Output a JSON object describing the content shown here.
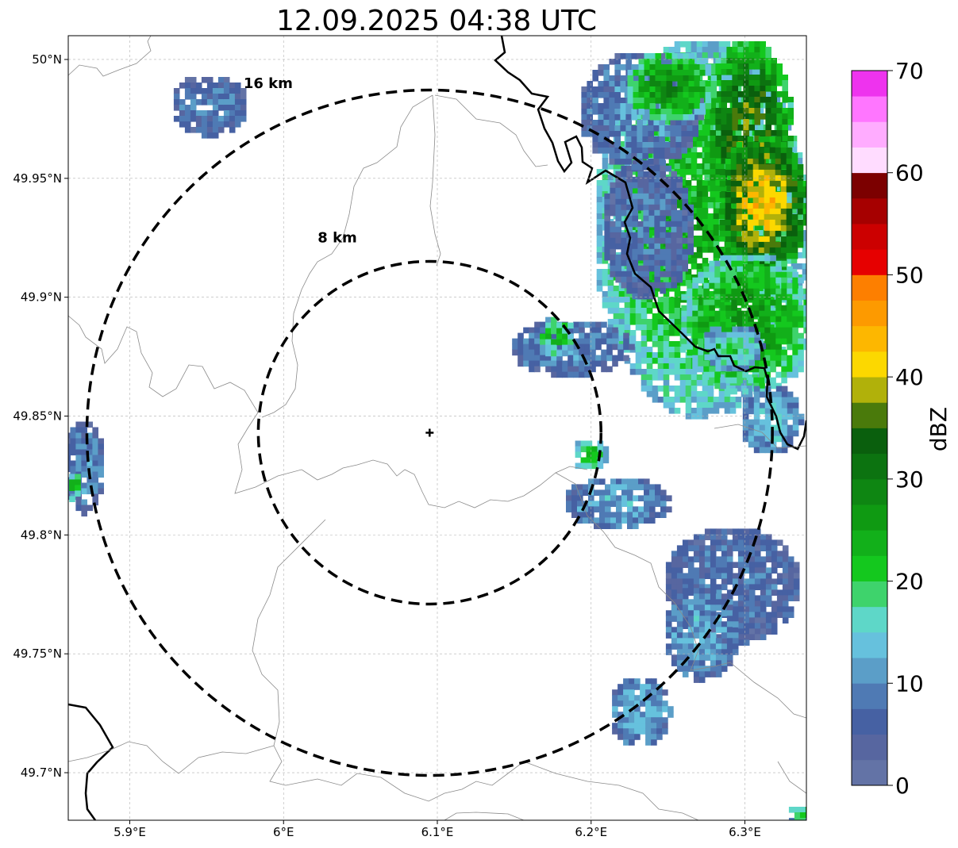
{
  "title": "12.09.2025 04:38 UTC",
  "map": {
    "lon_range": [
      5.86,
      6.34
    ],
    "lat_range": [
      49.68,
      50.01
    ],
    "radar_site": {
      "lon": 6.095,
      "lat": 49.843,
      "marker": "plus"
    },
    "grid": true,
    "x_ticks": [
      {
        "value": 5.9,
        "label": "5.9°E"
      },
      {
        "value": 6.0,
        "label": "6°E"
      },
      {
        "value": 6.1,
        "label": "6.1°E"
      },
      {
        "value": 6.2,
        "label": "6.2°E"
      },
      {
        "value": 6.3,
        "label": "6.3°E"
      }
    ],
    "y_ticks": [
      {
        "value": 49.7,
        "label": "49.7°N"
      },
      {
        "value": 49.75,
        "label": "49.75°N"
      },
      {
        "value": 49.8,
        "label": "49.8°N"
      },
      {
        "value": 49.85,
        "label": "49.85°N"
      },
      {
        "value": 49.9,
        "label": "49.9°N"
      },
      {
        "value": 49.95,
        "label": "49.95°N"
      },
      {
        "value": 50.0,
        "label": "50°N"
      }
    ],
    "range_rings": [
      {
        "radius_km": 8,
        "label": "8 km",
        "label_lon": 6.035,
        "label_lat": 49.923
      },
      {
        "radius_km": 16,
        "label": "16 km",
        "label_lon": 5.99,
        "label_lat": 49.988
      }
    ]
  },
  "colorbar": {
    "label": "dBZ",
    "min": 0,
    "max": 70,
    "step": 2.5,
    "tick_values": [
      0,
      10,
      20,
      30,
      40,
      50,
      60,
      70
    ],
    "tick_labels": [
      "0",
      "10",
      "20",
      "30",
      "40",
      "50",
      "60",
      "70"
    ],
    "colors": [
      "#6373a6",
      "#5766a0",
      "#4661a3",
      "#4f7ab4",
      "#5b9ec8",
      "#66c1dd",
      "#5ed7c8",
      "#3ed36c",
      "#14c81e",
      "#12b01a",
      "#0f9a12",
      "#0e8612",
      "#0c7310",
      "#0a5f0d",
      "#4a7a0b",
      "#b1b10a",
      "#fcd800",
      "#fdb700",
      "#fd9a00",
      "#fd7f00",
      "#e60000",
      "#cc0000",
      "#a60000",
      "#7c0000",
      "#ffdcff",
      "#ffacff",
      "#ff76ff",
      "#ee33ee"
    ]
  },
  "echoes": [
    {
      "lon": 6.27,
      "lat": 49.93,
      "rlon": 0.07,
      "rlat": 0.08,
      "dbz": 24
    },
    {
      "lon": 6.3,
      "lat": 49.97,
      "rlon": 0.03,
      "rlat": 0.04,
      "dbz": 36
    },
    {
      "lon": 6.31,
      "lat": 49.94,
      "rlon": 0.03,
      "rlat": 0.03,
      "dbz": 43
    },
    {
      "lon": 6.3,
      "lat": 49.89,
      "rlon": 0.045,
      "rlat": 0.03,
      "dbz": 27
    },
    {
      "lon": 6.235,
      "lat": 49.93,
      "rlon": 0.03,
      "rlat": 0.03,
      "dbz": 8
    },
    {
      "lon": 6.23,
      "lat": 49.98,
      "rlon": 0.04,
      "rlat": 0.025,
      "dbz": 10
    },
    {
      "lon": 6.25,
      "lat": 49.99,
      "rlon": 0.03,
      "rlat": 0.015,
      "dbz": 28
    },
    {
      "lon": 6.29,
      "lat": 49.88,
      "rlon": 0.02,
      "rlat": 0.01,
      "dbz": 18
    },
    {
      "lon": 6.315,
      "lat": 49.85,
      "rlon": 0.02,
      "rlat": 0.015,
      "dbz": 14
    },
    {
      "lon": 6.185,
      "lat": 49.88,
      "rlon": 0.04,
      "rlat": 0.012,
      "dbz": 10
    },
    {
      "lon": 6.175,
      "lat": 49.885,
      "rlon": 0.012,
      "rlat": 0.009,
      "dbz": 22
    },
    {
      "lon": 6.215,
      "lat": 49.815,
      "rlon": 0.035,
      "rlat": 0.011,
      "dbz": 12
    },
    {
      "lon": 6.198,
      "lat": 49.835,
      "rlon": 0.012,
      "rlat": 0.007,
      "dbz": 22
    },
    {
      "lon": 6.29,
      "lat": 49.78,
      "rlon": 0.045,
      "rlat": 0.025,
      "dbz": 8
    },
    {
      "lon": 6.27,
      "lat": 49.76,
      "rlon": 0.025,
      "rlat": 0.02,
      "dbz": 12
    },
    {
      "lon": 6.23,
      "lat": 49.727,
      "rlon": 0.02,
      "rlat": 0.015,
      "dbz": 13
    },
    {
      "lon": 5.95,
      "lat": 49.982,
      "rlon": 0.025,
      "rlat": 0.013,
      "dbz": 9
    },
    {
      "lon": 5.868,
      "lat": 49.83,
      "rlon": 0.014,
      "rlat": 0.02,
      "dbz": 10
    },
    {
      "lon": 5.862,
      "lat": 49.822,
      "rlon": 0.005,
      "rlat": 0.006,
      "dbz": 23
    },
    {
      "lon": 6.335,
      "lat": 49.684,
      "rlon": 0.01,
      "rlat": 0.004,
      "dbz": 23
    }
  ]
}
